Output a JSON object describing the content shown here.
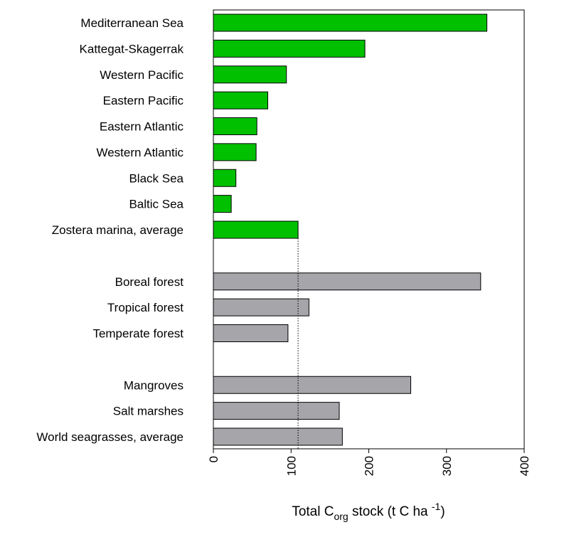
{
  "chart_data": {
    "type": "barh",
    "categories": [
      "Mediterranean Sea",
      "Kattegat-Skagerrak",
      "Western Pacific",
      "Eastern Pacific",
      "Eastern Atlantic",
      "Western Atlantic",
      "Black Sea",
      "Baltic Sea",
      "Zostera marina, average",
      null,
      "Boreal forest",
      "Tropical forest",
      "Temperate forest",
      null,
      "Mangroves",
      "Salt marshes",
      "World seagrasses, average"
    ],
    "values": [
      352,
      195,
      94,
      70,
      56,
      55,
      29,
      23,
      109,
      null,
      344,
      123,
      96,
      null,
      254,
      162,
      166
    ],
    "colors": [
      "#00c000",
      "#00c000",
      "#00c000",
      "#00c000",
      "#00c000",
      "#00c000",
      "#00c000",
      "#00c000",
      "#00c000",
      null,
      "#a5a5aa",
      "#a5a5aa",
      "#a5a5aa",
      null,
      "#a5a5aa",
      "#a5a5aa",
      "#a5a5aa"
    ],
    "xlabel_parts": [
      "Total C",
      "org",
      " stock (t C ha ",
      "-1",
      ")"
    ],
    "xlim": [
      0,
      400
    ],
    "xticks": [
      0,
      100,
      200,
      300,
      400
    ]
  }
}
